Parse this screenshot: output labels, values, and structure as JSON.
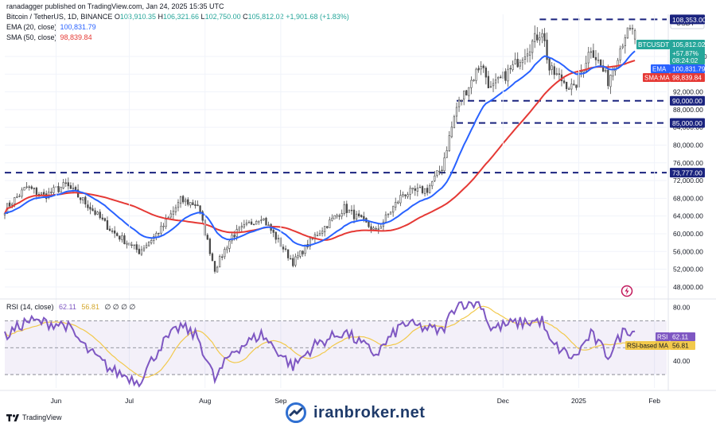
{
  "header": {
    "published_line": "ranadagger published on TradingView.com, Jan 24, 2025 15:35 UTC"
  },
  "legend": {
    "symbol_line": "Bitcoin / TetherUS, 1D, BINANCE",
    "ohlc": {
      "o_label": "O",
      "o": "103,910.35",
      "h_label": "H",
      "h": "106,321.66",
      "l_label": "L",
      "l": "102,750.00",
      "c_label": "C",
      "c": "105,812.02",
      "chg": "+1,901.68 (+1.83%)"
    },
    "ema_label": "EMA (20, close)",
    "ema_value": "100,831.79",
    "sma_label": "SMA (50, close)",
    "sma_value": "98,839.84"
  },
  "rsi_legend": {
    "label": "RSI (14, close)",
    "rsi_value": "62.11",
    "ma_value": "56.81",
    "extras": "∅ ∅ ∅ ∅"
  },
  "price_axis": {
    "currency": "USDT",
    "ticks": [
      "100,000.00",
      "96,000.00",
      "92,000.00",
      "88,000.00",
      "84,000.00",
      "80,000.00",
      "76,000.00",
      "72,000.00",
      "68,000.00",
      "64,000.00",
      "60,000.00",
      "56,000.00",
      "52,000.00",
      "48,000.00"
    ]
  },
  "price_badges": {
    "symbol": "BTCUSDT",
    "price": "105,812.02",
    "change": "+57.87%",
    "countdown": "08:24:02",
    "ema_tag": "EMA",
    "ema_value": "100,831.79",
    "sma_tag": "SMA:MA",
    "sma_value": "98,839.84"
  },
  "level_lines": [
    {
      "label": "108,353.00",
      "value": 108353,
      "x_start_date": "2024-12-16"
    },
    {
      "label": "90,000.00",
      "value": 90000,
      "x_start_date": "2024-11-12"
    },
    {
      "label": "85,000.00",
      "value": 85000,
      "x_start_date": "2024-11-12"
    },
    {
      "label": "73,777.00",
      "value": 73777,
      "x_start_date": "2024-05-11"
    }
  ],
  "rsi_axis": {
    "ticks": [
      "80.00",
      "40.00"
    ]
  },
  "rsi_badges": {
    "rsi_tag": "RSI",
    "rsi_value": "62.11",
    "ma_tag": "RSI-based MA",
    "ma_value": "56.81"
  },
  "time_axis": {
    "labels": [
      "Jun",
      "Jul",
      "Aug",
      "Sep",
      "Dec",
      "2025",
      "Feb"
    ]
  },
  "footer": {
    "brand": "TradingView",
    "watermark": "iranbroker.net"
  },
  "colors": {
    "up": "#26a69a",
    "down": "#ef5350",
    "candle": "#4a4a4a",
    "ema": "#2962ff",
    "sma": "#e53935",
    "rsi": "#7e57c2",
    "rsi_ma": "#f2c94c",
    "level": "#1a237e",
    "grid": "#f0f3fa"
  },
  "chart_data": [
    {
      "type": "candlestick",
      "title": "Bitcoin / TetherUS, 1D, BINANCE",
      "x_range": [
        "2024-05-11",
        "2025-02-06"
      ],
      "ylim": [
        46000,
        109500
      ],
      "anchors_close": [
        [
          "2024-05-11",
          65500
        ],
        [
          "2024-05-20",
          70500
        ],
        [
          "2024-05-27",
          68500
        ],
        [
          "2024-06-05",
          71000
        ],
        [
          "2024-06-14",
          66500
        ],
        [
          "2024-06-24",
          60500
        ],
        [
          "2024-07-05",
          56000
        ],
        [
          "2024-07-14",
          61000
        ],
        [
          "2024-07-22",
          67500
        ],
        [
          "2024-07-29",
          66500
        ],
        [
          "2024-08-05",
          52000
        ],
        [
          "2024-08-12",
          59500
        ],
        [
          "2024-08-24",
          64000
        ],
        [
          "2024-09-06",
          53500
        ],
        [
          "2024-09-15",
          59500
        ],
        [
          "2024-09-27",
          65800
        ],
        [
          "2024-10-10",
          60500
        ],
        [
          "2024-10-21",
          69000
        ],
        [
          "2024-10-31",
          70000
        ],
        [
          "2024-11-06",
          75000
        ],
        [
          "2024-11-12",
          88500
        ],
        [
          "2024-11-22",
          98500
        ],
        [
          "2024-11-26",
          92500
        ],
        [
          "2024-12-05",
          97500
        ],
        [
          "2024-12-17",
          106000
        ],
        [
          "2024-12-20",
          97000
        ],
        [
          "2024-12-30",
          92500
        ],
        [
          "2025-01-06",
          102000
        ],
        [
          "2025-01-13",
          94500
        ],
        [
          "2025-01-20",
          105000
        ],
        [
          "2025-01-24",
          105812
        ]
      ],
      "ema_20_last": 100831.79,
      "sma_50_last": 98839.84
    },
    {
      "type": "line",
      "title": "RSI (14, close)",
      "ylim": [
        20,
        85
      ],
      "levels": [
        70,
        50,
        30
      ],
      "anchors_rsi": [
        [
          "2024-05-11",
          58
        ],
        [
          "2024-05-20",
          70
        ],
        [
          "2024-06-05",
          67
        ],
        [
          "2024-06-14",
          48
        ],
        [
          "2024-06-24",
          33
        ],
        [
          "2024-07-05",
          25
        ],
        [
          "2024-07-14",
          52
        ],
        [
          "2024-07-22",
          66
        ],
        [
          "2024-07-29",
          58
        ],
        [
          "2024-08-05",
          26
        ],
        [
          "2024-08-12",
          47
        ],
        [
          "2024-08-24",
          60
        ],
        [
          "2024-09-06",
          36
        ],
        [
          "2024-09-15",
          52
        ],
        [
          "2024-09-27",
          62
        ],
        [
          "2024-10-10",
          45
        ],
        [
          "2024-10-21",
          68
        ],
        [
          "2024-11-06",
          62
        ],
        [
          "2024-11-12",
          83
        ],
        [
          "2024-11-22",
          83
        ],
        [
          "2024-11-26",
          64
        ],
        [
          "2024-12-05",
          68
        ],
        [
          "2024-12-17",
          70
        ],
        [
          "2024-12-20",
          54
        ],
        [
          "2024-12-30",
          42
        ],
        [
          "2025-01-06",
          60
        ],
        [
          "2025-01-13",
          44
        ],
        [
          "2025-01-20",
          64
        ],
        [
          "2025-01-24",
          62.11
        ]
      ],
      "rsi_ma_last": 56.81
    }
  ]
}
